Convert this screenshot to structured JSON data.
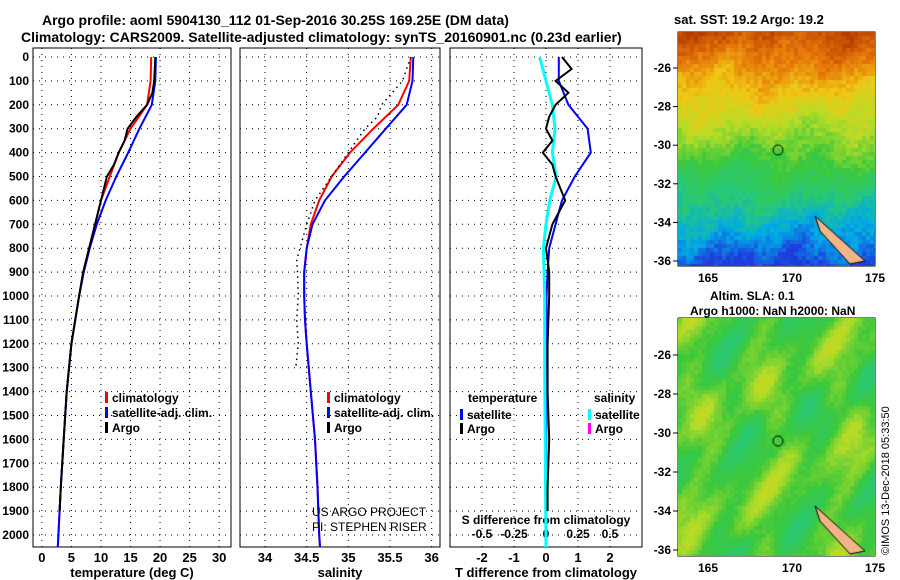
{
  "title_line1": "Argo profile: aoml 5904130_112 01-Sep-2016 30.25S 169.25E (DM data)",
  "title_line2": "Climatology: CARS2009. Satellite-adjusted climatology: synTS_20160901.nc (0.23d earlier)",
  "credit_line1": "US ARGO PROJECT",
  "credit_line2": "PI: STEPHEN RISER",
  "timestamp": "©IMOS 13-Dec-2018 05:33:50",
  "colors": {
    "climatology": "#ff0000",
    "satellite": "#0000ff",
    "argo": "#000000",
    "sal_satellite": "#00ffff",
    "sal_argo": "#ff00ff"
  },
  "chart_data": [
    {
      "type": "line",
      "id": "temperature",
      "xlabel": "temperature (deg C)",
      "ylabel": "depth",
      "xlim": [
        -1.5,
        32
      ],
      "ylim": [
        2050,
        0
      ],
      "xticks": [
        "0",
        "5",
        "10",
        "15",
        "20",
        "25",
        "30"
      ],
      "xtick_values": [
        0,
        5,
        10,
        15,
        20,
        25,
        30
      ],
      "yticks": [
        0,
        100,
        200,
        300,
        400,
        500,
        600,
        700,
        800,
        900,
        1000,
        1100,
        1200,
        1300,
        1400,
        1500,
        1600,
        1700,
        1800,
        1900,
        2000
      ],
      "legend": [
        "climatology",
        "satellite-adj. clim.",
        "Argo"
      ],
      "series": [
        {
          "name": "climatology",
          "color": "#ff0000",
          "depth": [
            0,
            100,
            200,
            300,
            400,
            500,
            600,
            700,
            800,
            900,
            1000,
            1200,
            1400,
            1600,
            1800,
            2000,
            2050
          ],
          "values": [
            18.5,
            18.4,
            17.8,
            15,
            13,
            11.5,
            10,
            9,
            8,
            7,
            6.3,
            5,
            4.2,
            3.7,
            3.2,
            2.8,
            2.7
          ]
        },
        {
          "name": "satellite-adj. clim.",
          "color": "#0000ff",
          "depth": [
            0,
            100,
            200,
            300,
            400,
            500,
            600,
            700,
            800,
            900,
            1000,
            1200,
            1400,
            1600,
            1800,
            2000,
            2050
          ],
          "values": [
            19.3,
            19.2,
            18.6,
            16.5,
            14.6,
            12.6,
            10.8,
            9.3,
            8.1,
            7.1,
            6.3,
            5,
            4.2,
            3.7,
            3.2,
            2.8,
            2.7
          ]
        },
        {
          "name": "Argo",
          "color": "#000000",
          "depth": [
            0,
            100,
            150,
            200,
            250,
            300,
            350,
            400,
            450,
            500,
            600,
            700,
            800,
            900,
            1000,
            1200,
            1400,
            1600,
            1800,
            1900
          ],
          "values": [
            19.2,
            19,
            18.7,
            17.8,
            16,
            14.5,
            14,
            13,
            12.2,
            11,
            10,
            9,
            8,
            7,
            6.3,
            5,
            4.2,
            3.7,
            3.2,
            3
          ]
        }
      ]
    },
    {
      "type": "line",
      "id": "salinity",
      "xlabel": "salinity",
      "xlim": [
        33.7,
        36.1
      ],
      "ylim": [
        2050,
        0
      ],
      "xticks": [
        "34",
        "34.5",
        "35",
        "35.5",
        "36"
      ],
      "xtick_values": [
        34,
        34.5,
        35,
        35.5,
        36
      ],
      "legend": [
        "climatology",
        "satellite-adj. clim.",
        "Argo"
      ],
      "series": [
        {
          "name": "climatology",
          "color": "#ff0000",
          "depth": [
            0,
            100,
            200,
            300,
            400,
            500,
            600,
            700,
            800,
            900,
            1000,
            1100,
            1200,
            1400,
            1600,
            1800,
            2000,
            2050
          ],
          "values": [
            35.75,
            35.73,
            35.6,
            35.3,
            35.02,
            34.8,
            34.65,
            34.55,
            34.5,
            34.47,
            34.47,
            34.48,
            34.5,
            34.55,
            34.6,
            34.63,
            34.65,
            34.66
          ]
        },
        {
          "name": "satellite-adj. clim.",
          "color": "#0000ff",
          "depth": [
            0,
            100,
            200,
            300,
            400,
            500,
            600,
            700,
            800,
            900,
            1000,
            1100,
            1200,
            1400,
            1600,
            1800,
            2000,
            2050
          ],
          "values": [
            35.78,
            35.77,
            35.7,
            35.45,
            35.2,
            34.95,
            34.72,
            34.57,
            34.5,
            34.47,
            34.47,
            34.48,
            34.5,
            34.55,
            34.6,
            34.63,
            34.65,
            34.66
          ]
        },
        {
          "name": "Argo",
          "color": "#000000",
          "dotted": true,
          "depth": [
            0,
            100,
            200,
            250,
            300,
            400,
            500,
            600,
            700,
            800,
            850,
            900,
            1000,
            1100,
            1200,
            1300
          ],
          "values": [
            35.75,
            35.65,
            35.4,
            35.35,
            35.2,
            35.0,
            34.8,
            34.6,
            34.5,
            34.42,
            34.38,
            34.39,
            34.4,
            34.38,
            34.4,
            34.37
          ]
        }
      ]
    },
    {
      "type": "line",
      "id": "difference",
      "xlabel": "T difference from climatology",
      "xlabel2": "S difference from climatology",
      "xlim": [
        -3,
        3
      ],
      "ylim": [
        2050,
        0
      ],
      "xticks": [
        "-2",
        "-1",
        "0",
        "1",
        "2"
      ],
      "xtick_values": [
        -2,
        -1,
        0,
        1,
        2
      ],
      "sticks": [
        "-0.5",
        "-0.25",
        "0",
        "0.25",
        "0.5"
      ],
      "stick_values": [
        -0.5,
        -0.25,
        0,
        0.25,
        0.5
      ],
      "legend_temp_title": "temperature",
      "legend_sal_title": "salinity",
      "legend": [
        "satellite",
        "Argo",
        "satellite",
        "Argo"
      ],
      "series": [
        {
          "name": "T satellite",
          "color": "#0000ff",
          "depth": [
            0,
            100,
            200,
            300,
            400,
            500,
            600,
            700,
            800,
            900,
            1000,
            2050
          ],
          "values": [
            0.4,
            0.4,
            0.7,
            1.3,
            1.4,
            0.9,
            0.5,
            0.3,
            0.1,
            0.05,
            0.02,
            0
          ]
        },
        {
          "name": "S satellite",
          "color": "#00ffff",
          "scale": "S",
          "depth": [
            0,
            100,
            200,
            300,
            400,
            500,
            600,
            700,
            800,
            1000,
            1300,
            2050
          ],
          "values": [
            -0.05,
            0,
            0.05,
            0.07,
            0.05,
            0.08,
            0.03,
            0,
            -0.02,
            -0.01,
            -0.01,
            0
          ]
        },
        {
          "name": "T Argo",
          "color": "#000000",
          "depth": [
            0,
            50,
            100,
            150,
            200,
            250,
            300,
            350,
            400,
            450,
            500,
            600,
            700,
            800,
            900,
            1000,
            1200,
            1400,
            1600,
            1800,
            1900
          ],
          "values": [
            0.5,
            0.8,
            0.3,
            0.7,
            0.3,
            0.1,
            0,
            0.2,
            -0.1,
            0.2,
            0.3,
            0.6,
            0.2,
            0,
            0.1,
            0.1,
            0.05,
            0.05,
            0.1,
            0.05,
            0.05
          ]
        }
      ]
    }
  ],
  "maps": [
    {
      "id": "sst",
      "title": "sat. SST: 19.2 Argo: 19.2",
      "lat_ticks": [
        "-26",
        "-28",
        "-30",
        "-32",
        "-34",
        "-36"
      ],
      "lon_ticks": [
        "165",
        "170",
        "175"
      ]
    },
    {
      "id": "sla",
      "title": "Altim. SLA: 0.1",
      "title2": "Argo h1000: NaN h2000: NaN",
      "lat_ticks": [
        "-26",
        "-28",
        "-30",
        "-32",
        "-34",
        "-36"
      ],
      "lon_ticks": [
        "165",
        "170",
        "175"
      ]
    }
  ]
}
